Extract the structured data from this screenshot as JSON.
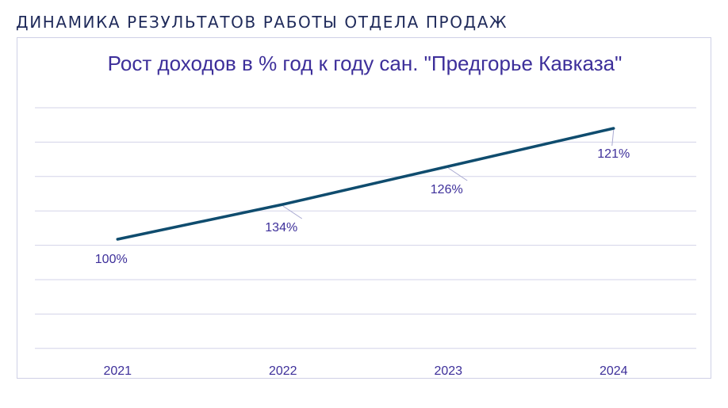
{
  "header": {
    "title": "ДИНАМИКА РЕЗУЛЬТАТОВ РАБОТЫ ОТДЕЛА ПРОДАЖ"
  },
  "chart_data": {
    "type": "line",
    "title": "Рост доходов в % год к году сан. \"Предгорье Кавказа\"",
    "categories": [
      "2021",
      "2022",
      "2023",
      "2024"
    ],
    "series": [
      {
        "values": [
          100,
          134,
          126,
          121
        ],
        "data_labels": [
          "100%",
          "134%",
          "126%",
          "121%"
        ],
        "color": "#0f4c6e"
      }
    ],
    "xlabel": "",
    "ylabel": "",
    "grid": true,
    "y_axis_labels_visible": false,
    "legend": "none"
  }
}
